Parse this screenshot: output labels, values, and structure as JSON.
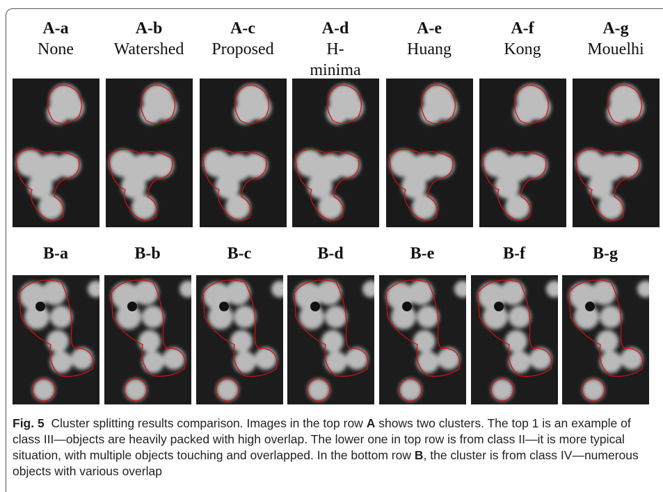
{
  "row_a": {
    "panels": [
      {
        "id": "A-a",
        "method": "None"
      },
      {
        "id": "A-b",
        "method": "Watershed"
      },
      {
        "id": "A-c",
        "method": "Proposed"
      },
      {
        "id": "A-d",
        "method": "H-minima"
      },
      {
        "id": "A-e",
        "method": "Huang"
      },
      {
        "id": "A-f",
        "method": "Kong"
      },
      {
        "id": "A-g",
        "method": "Mouelhi"
      }
    ]
  },
  "row_b": {
    "panels": [
      "B-a",
      "B-b",
      "B-c",
      "B-d",
      "B-e",
      "B-f",
      "B-g"
    ]
  },
  "caption": {
    "label": "Fig. 5",
    "text_1": "Cluster splitting results comparison. Images in the top row",
    "bold_1": "A",
    "text_2": "shows two clusters. The top 1 is an example of class III—objects are heavily packed with high overlap. The lower one in top row is from class II—it is more typical situation, with multiple objects touching and overlapped. In the bottom row",
    "bold_2": "B",
    "text_3": ", the cluster is from class IV—numerous objects with various overlap"
  }
}
